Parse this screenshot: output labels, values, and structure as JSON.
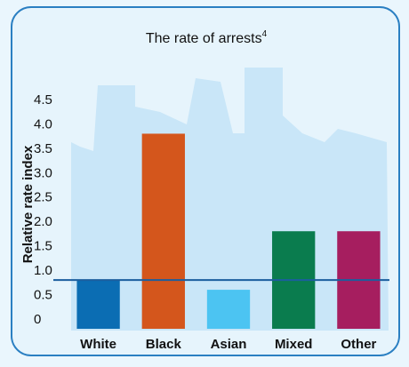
{
  "chart_data": {
    "type": "bar",
    "title": "The rate of arrests",
    "title_footnote": "4",
    "ylabel": "Relative rate index",
    "categories": [
      "White",
      "Black",
      "Asian",
      "Mixed",
      "Other"
    ],
    "values": [
      1.0,
      4.0,
      0.8,
      2.0,
      2.0
    ],
    "colors": [
      "#0b6db3",
      "#d4561c",
      "#4cc4f2",
      "#0a7c4e",
      "#a61e5f"
    ],
    "reference_line": 1.0,
    "reference_color": "#1b5e9e",
    "ylim": [
      0,
      4.5
    ],
    "yticks": [
      0,
      0.5,
      {
        "value": 1,
        "label": "1.0"
      },
      1.5,
      {
        "value": 2,
        "label": "2.0"
      },
      2.5,
      {
        "value": 3,
        "label": "3.0"
      },
      3.5,
      {
        "value": 4,
        "label": "4.0"
      },
      4.5
    ],
    "grid": false
  }
}
